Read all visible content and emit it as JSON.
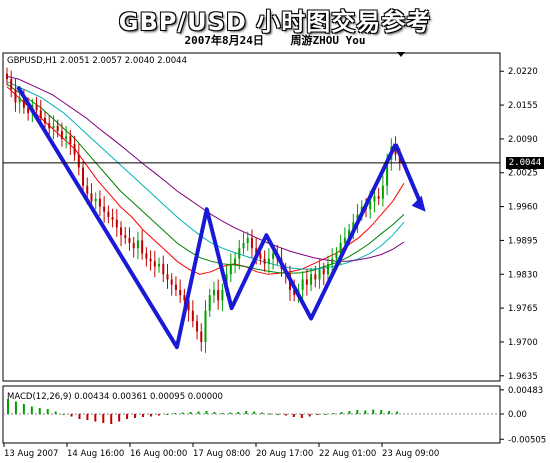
{
  "header": {
    "title": "GBP/USD 小时图交易参考",
    "date": "2007年8月24日",
    "author": "周游ZHOU You"
  },
  "chart_data": {
    "type": "candlestick",
    "symbol_info": "GBPUSD,H1 2.0051 2.0057 2.0040 2.0044",
    "current_price_label": "2.0044",
    "current_price": 2.0044,
    "price_axis": [
      "2.0220",
      "2.0155",
      "2.0090",
      "2.0025",
      "1.9960",
      "1.9895",
      "1.9830",
      "1.9765",
      "1.9700",
      "1.9635"
    ],
    "ylim": [
      1.9625,
      2.0255
    ],
    "time_axis": [
      "13 Aug 2007",
      "14 Aug 16:00",
      "16 Aug 00:00",
      "17 Aug 08:00",
      "20 Aug 17:00",
      "22 Aug 01:00",
      "23 Aug 09:00"
    ],
    "macd_info": "MACD(12,26,9) 0.00434 0.00361 0.00095 0.00000",
    "macd_axis": [
      "0.00483",
      "0.00",
      "-0.00505"
    ],
    "macd_ylim": [
      -0.0058,
      0.0056
    ],
    "close_series": [
      2.0205,
      2.0185,
      2.016,
      2.017,
      2.015,
      2.014,
      2.0155,
      2.0145,
      2.013,
      2.012,
      2.011,
      2.0115,
      2.0105,
      2.009,
      2.0095,
      2.008,
      2.006,
      2.0035,
      2.0,
      1.9985,
      1.997,
      1.9975,
      1.996,
      1.995,
      1.994,
      1.9935,
      1.992,
      1.9905,
      1.99,
      1.989,
      1.988,
      1.9895,
      1.987,
      1.986,
      1.9855,
      1.9845,
      1.985,
      1.983,
      1.982,
      1.981,
      1.98,
      1.979,
      1.978,
      1.976,
      1.974,
      1.972,
      1.97,
      1.976,
      1.979,
      1.98,
      1.978,
      1.98,
      1.983,
      1.985,
      1.986,
      1.988,
      1.989,
      1.99,
      1.988,
      1.987,
      1.986,
      1.985,
      1.986,
      1.987,
      1.986,
      1.984,
      1.983,
      1.98,
      1.979,
      1.98,
      1.982,
      1.981,
      1.983,
      1.982,
      1.984,
      1.983,
      1.985,
      1.986,
      1.987,
      1.989,
      1.99,
      1.9915,
      1.993,
      1.9945,
      1.996,
      1.9955,
      1.997,
      1.998,
      1.9975,
      2.0,
      2.005,
      2.0075,
      2.006,
      2.0044
    ],
    "ma_series": [
      {
        "color": "#ff0000",
        "values": [
          2.019,
          2.017,
          2.015,
          2.013,
          2.011,
          2.009,
          2.007,
          2.004,
          2.001,
          1.9985,
          1.996,
          1.994,
          1.9915,
          1.9895,
          1.9875,
          1.9855,
          1.984,
          1.983,
          1.9835,
          1.9845,
          1.985,
          1.9845,
          1.9835,
          1.983,
          1.9832,
          1.9835,
          1.984,
          1.985,
          1.986,
          1.987,
          1.9885,
          1.99,
          1.992,
          1.9945,
          1.997,
          2.0005
        ]
      },
      {
        "color": "#008000",
        "values": [
          2.0195,
          2.018,
          2.0165,
          2.015,
          2.013,
          2.011,
          2.009,
          2.0065,
          2.004,
          2.0015,
          1.999,
          1.997,
          1.995,
          1.993,
          1.991,
          1.989,
          1.9875,
          1.9862,
          1.9855,
          1.985,
          1.9848,
          1.9845,
          1.984,
          1.9836,
          1.9833,
          1.9832,
          1.9833,
          1.9838,
          1.9845,
          1.9852,
          1.9862,
          1.9875,
          1.989,
          1.9908,
          1.9925,
          1.9945
        ]
      },
      {
        "color": "#00b4b4",
        "values": [
          2.02,
          2.019,
          2.018,
          2.017,
          2.0155,
          2.014,
          2.012,
          2.01,
          2.008,
          2.006,
          2.004,
          2.002,
          2.0,
          1.998,
          1.996,
          1.994,
          1.9922,
          1.9905,
          1.989,
          1.988,
          1.9872,
          1.9865,
          1.9858,
          1.9852,
          1.9846,
          1.9842,
          1.984,
          1.984,
          1.9842,
          1.9846,
          1.9852,
          1.986,
          1.987,
          1.9885,
          1.9905,
          1.993
        ]
      },
      {
        "color": "#800080",
        "values": [
          2.021,
          2.0205,
          2.0195,
          2.0185,
          2.0175,
          2.016,
          2.0145,
          2.013,
          2.0112,
          2.0095,
          2.0078,
          2.006,
          2.0042,
          2.0025,
          2.0008,
          1.999,
          1.9975,
          1.996,
          1.9945,
          1.9932,
          1.992,
          1.991,
          1.99,
          1.989,
          1.9882,
          1.9874,
          1.9868,
          1.9862,
          1.9858,
          1.9855,
          1.9855,
          1.9858,
          1.9862,
          1.9868,
          1.9878,
          1.9892
        ]
      }
    ],
    "wave_path": [
      [
        2.019,
        0.03
      ],
      [
        1.969,
        0.35
      ],
      [
        1.9955,
        0.41
      ],
      [
        1.9765,
        0.46
      ],
      [
        1.9905,
        0.53
      ],
      [
        1.9745,
        0.62
      ],
      [
        2.008,
        0.79
      ]
    ],
    "macd_hist": [
      0.003,
      0.0025,
      0.002,
      0.0015,
      0.0012,
      0.001,
      0.0005,
      0,
      -0.0005,
      -0.001,
      -0.0012,
      -0.0015,
      -0.0018,
      -0.002,
      -0.0015,
      -0.001,
      -0.0008,
      -0.0006,
      -0.0005,
      -0.0003,
      0,
      0.0002,
      0.0003,
      0.0004,
      0.0005,
      0.0006,
      0.0004,
      0.0002,
      0.0003,
      0.0004,
      0.0006,
      0.0005,
      0.0003,
      0.0001,
      0,
      -0.0003,
      -0.0006,
      -0.0008,
      -0.0005,
      -0.0002,
      0,
      0.0002,
      0.0004,
      0.0006,
      0.0008,
      0.0007,
      0.0009,
      0.0008,
      0.0006,
      0.0005
    ]
  }
}
